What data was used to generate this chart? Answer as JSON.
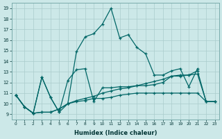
{
  "xlabel": "Humidex (Indice chaleur)",
  "xlim": [
    -0.5,
    23.5
  ],
  "ylim": [
    8.5,
    19.5
  ],
  "xticks": [
    0,
    1,
    2,
    3,
    4,
    5,
    6,
    7,
    8,
    9,
    10,
    11,
    12,
    13,
    14,
    15,
    16,
    17,
    18,
    19,
    20,
    21,
    22,
    23
  ],
  "yticks": [
    9,
    10,
    11,
    12,
    13,
    14,
    15,
    16,
    17,
    18,
    19
  ],
  "bg_color": "#cce8e8",
  "line_color": "#006666",
  "grid_color": "#aacccc",
  "line1": {
    "x": [
      0,
      1,
      2,
      3,
      4,
      5,
      6,
      7,
      8,
      9,
      10,
      11,
      12,
      13,
      14,
      15,
      16,
      17,
      18,
      19,
      20,
      21
    ],
    "y": [
      10.8,
      9.7,
      9.1,
      12.5,
      10.6,
      9.2,
      10.0,
      14.9,
      16.3,
      16.6,
      17.5,
      19.0,
      16.2,
      16.5,
      15.3,
      14.7,
      12.7,
      12.7,
      13.1,
      13.3,
      11.6,
      13.3
    ]
  },
  "line2": {
    "comment": "mid zigzag line - peaks at x=3 ~12.5, x=6 ~12.2, x=7 ~13.2, x=8 ~13.3",
    "x": [
      0,
      1,
      2,
      3,
      4,
      5,
      6,
      7,
      8,
      9,
      10,
      11,
      12,
      13,
      14,
      15,
      16,
      17,
      18,
      19,
      20,
      21,
      22,
      23
    ],
    "y": [
      10.8,
      9.7,
      9.1,
      12.5,
      10.6,
      9.2,
      12.2,
      13.2,
      13.3,
      10.2,
      11.5,
      11.5,
      11.6,
      11.6,
      11.7,
      11.7,
      11.8,
      12.0,
      12.6,
      12.7,
      12.7,
      13.1,
      10.2,
      10.2
    ]
  },
  "line3": {
    "x": [
      0,
      1,
      2,
      3,
      4,
      5,
      6,
      7,
      8,
      9,
      10,
      11,
      12,
      13,
      14,
      15,
      16,
      17,
      18,
      19,
      20,
      21,
      22,
      23
    ],
    "y": [
      10.8,
      9.7,
      9.1,
      9.2,
      9.2,
      9.5,
      10.0,
      10.3,
      10.5,
      10.7,
      11.0,
      11.2,
      11.4,
      11.5,
      11.7,
      11.9,
      12.1,
      12.3,
      12.6,
      12.6,
      12.7,
      12.8,
      10.2,
      10.2
    ]
  },
  "line4": {
    "x": [
      0,
      1,
      2,
      3,
      4,
      5,
      6,
      7,
      8,
      9,
      10,
      11,
      12,
      13,
      14,
      15,
      16,
      17,
      18,
      19,
      20,
      21,
      22,
      23
    ],
    "y": [
      10.8,
      9.7,
      9.1,
      9.2,
      9.2,
      9.5,
      10.0,
      10.2,
      10.3,
      10.5,
      10.5,
      10.6,
      10.8,
      10.9,
      11.0,
      11.0,
      11.0,
      11.0,
      11.0,
      11.0,
      11.0,
      11.0,
      10.2,
      10.2
    ]
  }
}
